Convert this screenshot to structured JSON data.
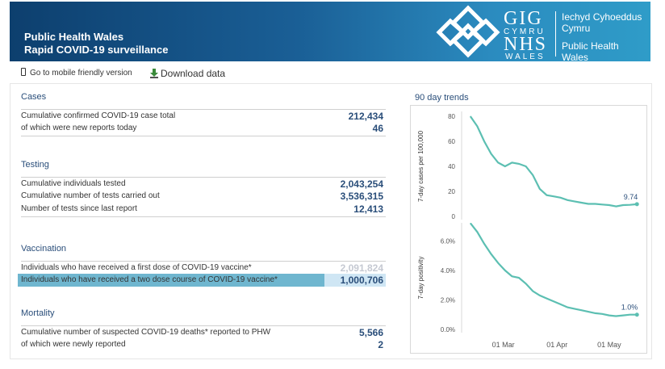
{
  "header": {
    "title_line1": "Public Health Wales",
    "title_line2": "Rapid COVID-19 surveillance",
    "logo": {
      "gig": "GIG",
      "cymru": "CYMRU",
      "nhs": "NHS",
      "wales": "WALES"
    },
    "org_welsh": [
      "Iechyd Cyhoeddus",
      "Cymru"
    ],
    "org_english": [
      "Public Health",
      "Wales"
    ]
  },
  "links": {
    "mobile_icon": "phone-icon",
    "mobile_label": "Go to mobile friendly version",
    "download_icon": "download-icon",
    "download_label": "Download data"
  },
  "sections": {
    "cases": {
      "title": "Cases",
      "rows": [
        {
          "label": "Cumulative confirmed COVID-19 case total",
          "value": "212,434"
        },
        {
          "label": "of which were new reports today",
          "value": "46"
        }
      ]
    },
    "testing": {
      "title": "Testing",
      "rows": [
        {
          "label": "Cumulative individuals tested",
          "value": "2,043,254"
        },
        {
          "label": "Cumulative number of tests carried out",
          "value": "3,536,315"
        },
        {
          "label": "Number of tests since last report",
          "value": "12,413"
        }
      ]
    },
    "vaccination": {
      "title": "Vaccination",
      "rows": [
        {
          "label": "Individuals who have received a first dose of COVID-19 vaccine*",
          "value": "2,091,824"
        },
        {
          "label": "Individuals who have received a two dose course of COVID-19 vaccine*",
          "value": "1,000,706"
        }
      ]
    },
    "mortality": {
      "title": "Mortality",
      "rows": [
        {
          "label": "Cumulative number of suspected COVID-19 deaths* reported to PHW",
          "value": "5,566"
        },
        {
          "label": "of which were newly reported",
          "value": "2"
        }
      ]
    }
  },
  "trends": {
    "title": "90 day trends"
  },
  "colors": {
    "banner_dark": "#0d3f6e",
    "banner_light": "#2f9cc8",
    "accent_text": "#2a4e7a",
    "line": "#5cbfb2",
    "highlight": "#cfe6f4"
  },
  "chart_data": [
    {
      "type": "line",
      "title": "",
      "ylabel": "7-day cases per 100,000",
      "xlabel": "",
      "ylim": [
        0,
        80
      ],
      "yticks": [
        "0",
        "20",
        "40",
        "60",
        "80"
      ],
      "end_label": "9.74",
      "x": [
        "2021-02-10",
        "2021-02-14",
        "2021-02-18",
        "2021-02-22",
        "2021-02-26",
        "2021-03-02",
        "2021-03-06",
        "2021-03-10",
        "2021-03-14",
        "2021-03-18",
        "2021-03-22",
        "2021-03-26",
        "2021-03-30",
        "2021-04-03",
        "2021-04-07",
        "2021-04-11",
        "2021-04-15",
        "2021-04-19",
        "2021-04-23",
        "2021-04-27",
        "2021-05-01",
        "2021-05-05",
        "2021-05-09",
        "2021-05-13",
        "2021-05-17"
      ],
      "values": [
        80,
        72,
        60,
        50,
        43,
        40,
        43,
        42,
        40,
        33,
        22,
        17,
        16,
        15,
        13,
        12,
        11,
        10,
        10,
        9.5,
        9,
        8,
        9,
        9.2,
        9.74
      ]
    },
    {
      "type": "line",
      "title": "",
      "ylabel": "7-day positivity",
      "xlabel": "",
      "ylim": [
        0,
        7
      ],
      "yticks": [
        "0.0%",
        "2.0%",
        "4.0%",
        "6.0%"
      ],
      "xticks": [
        "01 Mar",
        "01 Apr",
        "01 May"
      ],
      "end_label": "1.0%",
      "x": [
        "2021-02-10",
        "2021-02-14",
        "2021-02-18",
        "2021-02-22",
        "2021-02-26",
        "2021-03-02",
        "2021-03-06",
        "2021-03-10",
        "2021-03-14",
        "2021-03-18",
        "2021-03-22",
        "2021-03-26",
        "2021-03-30",
        "2021-04-03",
        "2021-04-07",
        "2021-04-11",
        "2021-04-15",
        "2021-04-19",
        "2021-04-23",
        "2021-04-27",
        "2021-05-01",
        "2021-05-05",
        "2021-05-09",
        "2021-05-13",
        "2021-05-17"
      ],
      "values": [
        7.2,
        6.6,
        5.8,
        5.1,
        4.5,
        4.0,
        3.6,
        3.5,
        3.1,
        2.6,
        2.3,
        2.1,
        1.9,
        1.7,
        1.5,
        1.4,
        1.3,
        1.2,
        1.1,
        1.05,
        0.95,
        0.9,
        0.95,
        1.0,
        1.0
      ]
    }
  ]
}
